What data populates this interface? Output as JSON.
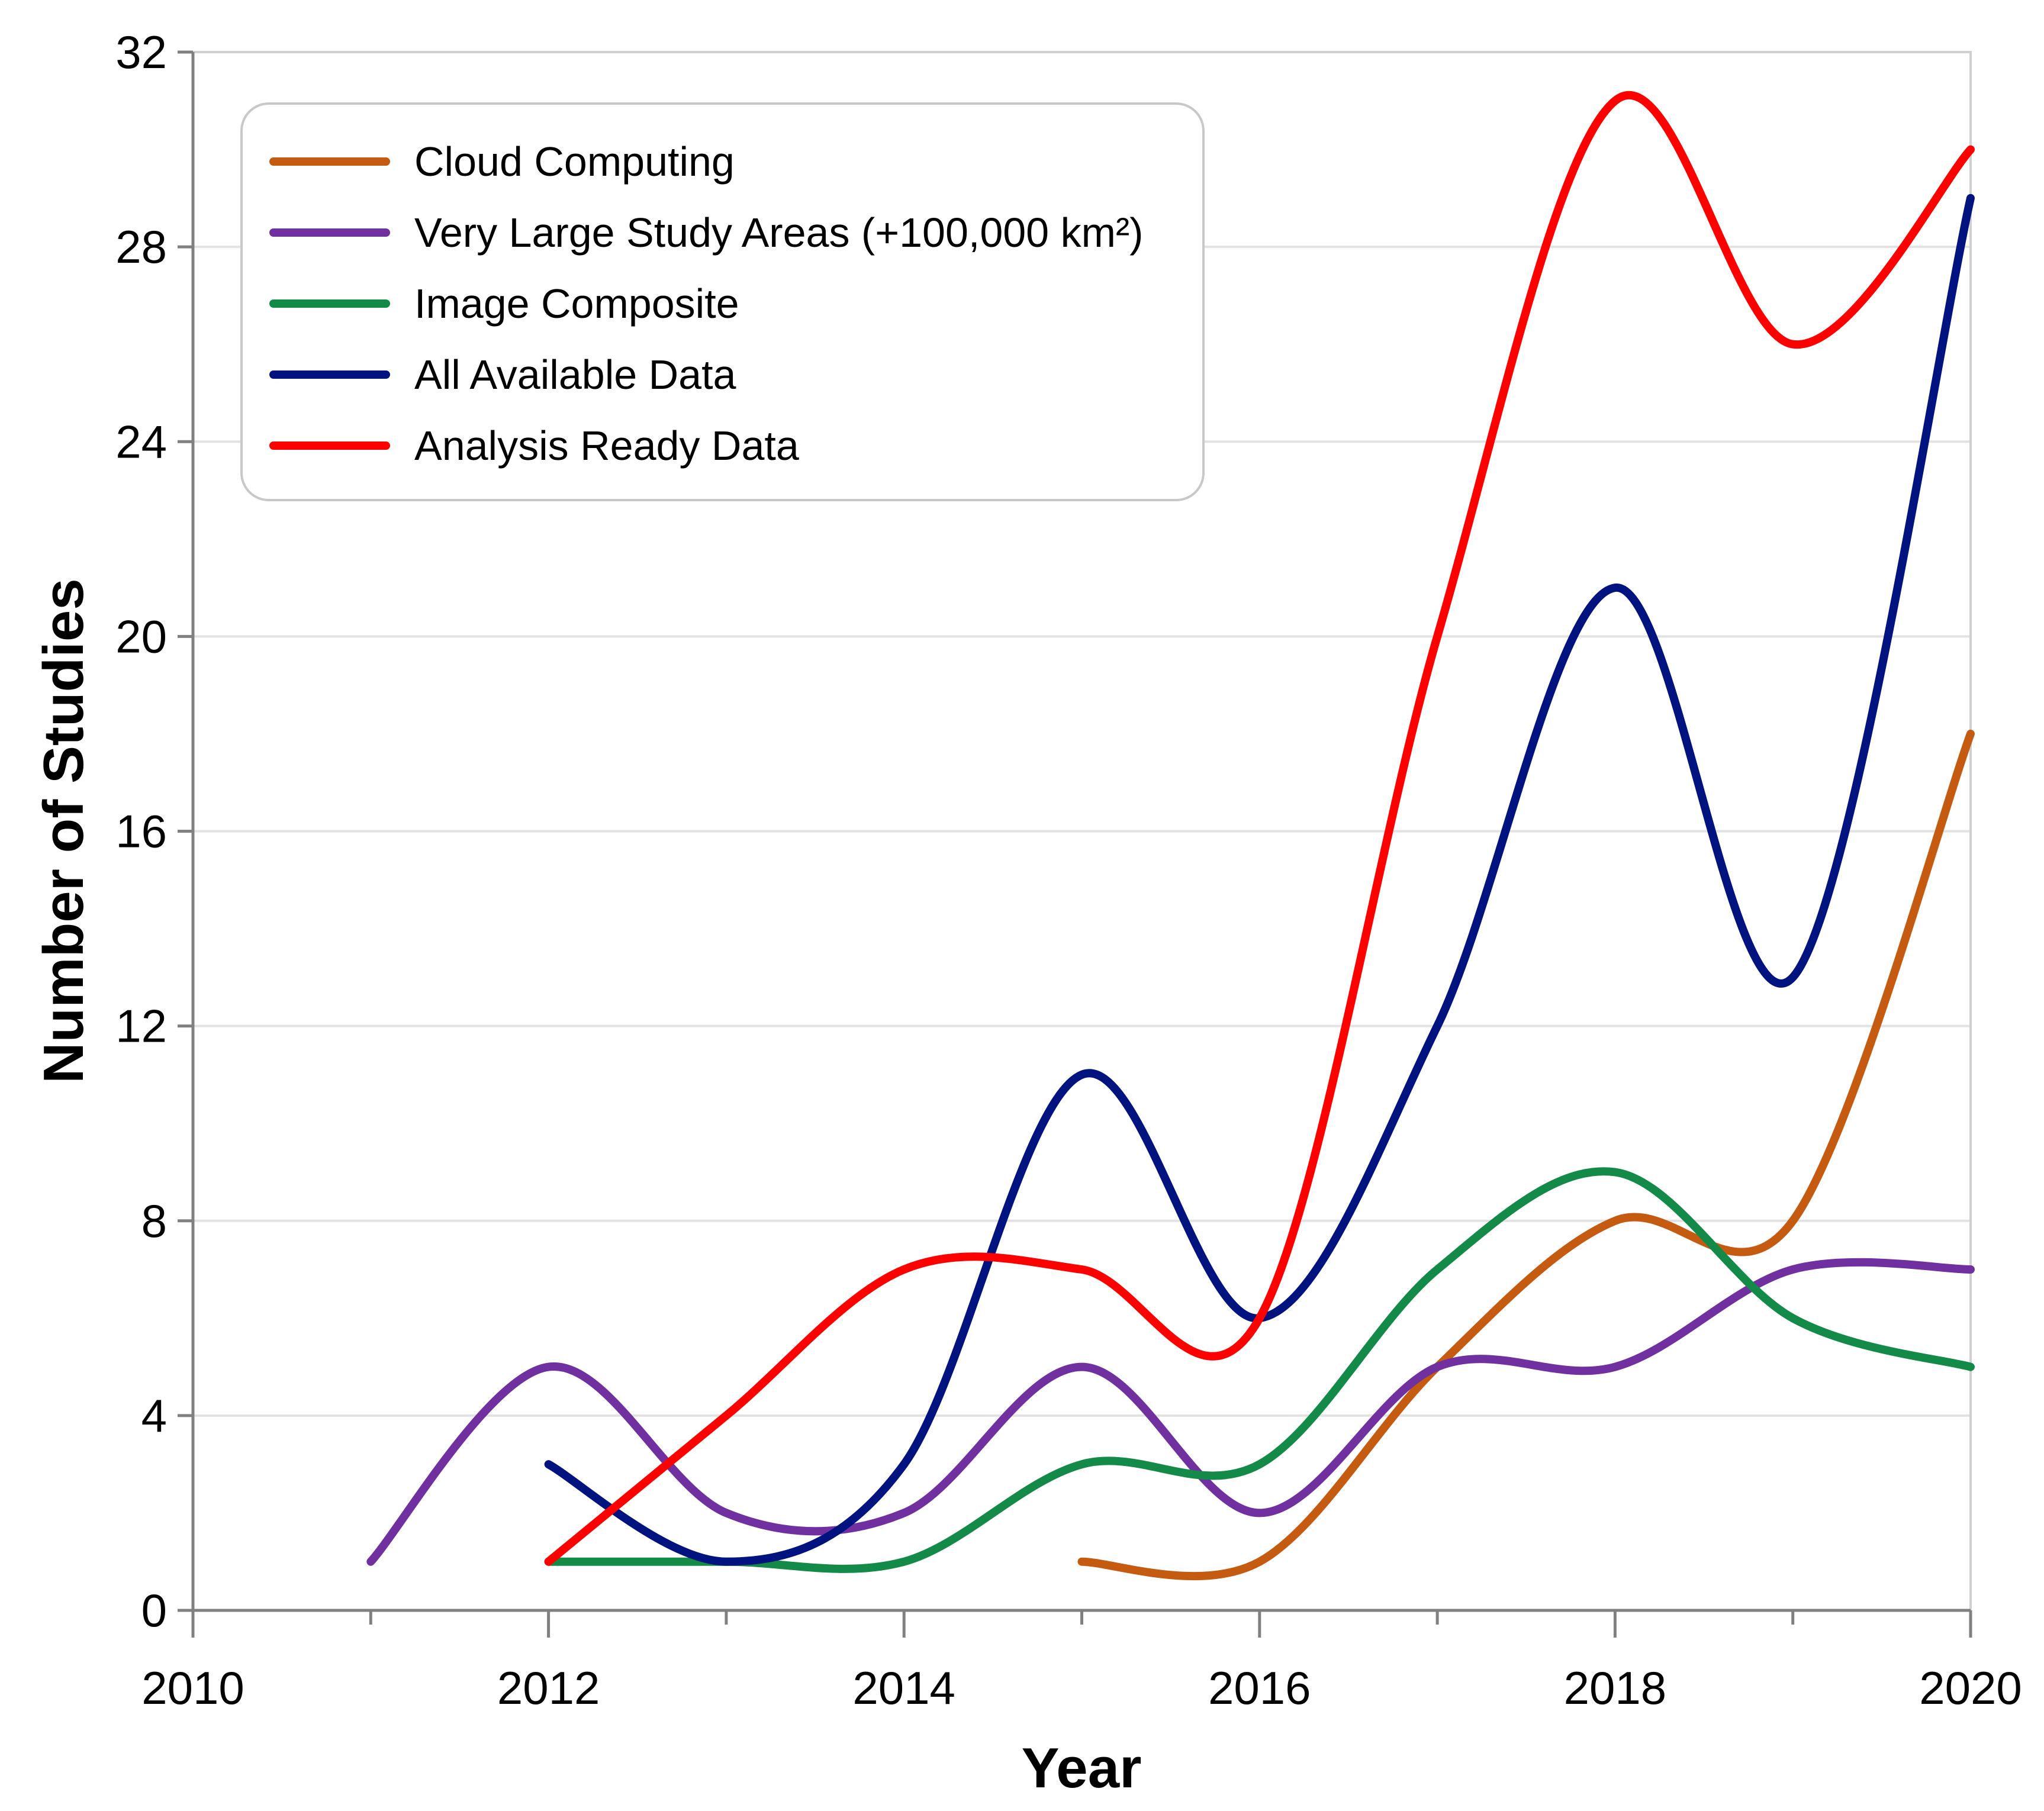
{
  "chart_data": {
    "type": "line",
    "title": "",
    "xlabel": "Year",
    "ylabel": "Number of Studies",
    "xlim": [
      2010,
      2020
    ],
    "ylim": [
      0,
      32
    ],
    "xticks": [
      2010,
      2012,
      2014,
      2016,
      2018,
      2020
    ],
    "xminor_ticks": [
      2011,
      2013,
      2015,
      2017,
      2019
    ],
    "yticks": [
      0,
      4,
      8,
      12,
      16,
      20,
      24,
      28,
      32
    ],
    "grid": true,
    "smooth": true,
    "legend_position": "top-left",
    "series": [
      {
        "name": "Cloud Computing",
        "color": "#c55a11",
        "x": [
          2015,
          2016,
          2017,
          2018,
          2019,
          2020
        ],
        "values": [
          1,
          1,
          5,
          8,
          8,
          18
        ]
      },
      {
        "name": "Very Large Study Areas (+100,000 km²)",
        "color": "#7030a0",
        "x": [
          2011,
          2012,
          2013,
          2014,
          2015,
          2016,
          2017,
          2018,
          2019,
          2020
        ],
        "values": [
          1,
          5,
          2,
          2,
          5,
          2,
          5,
          5,
          7,
          7
        ]
      },
      {
        "name": "Image Composite",
        "color": "#138a48",
        "x": [
          2012,
          2013,
          2014,
          2015,
          2016,
          2017,
          2018,
          2019,
          2020
        ],
        "values": [
          1,
          1,
          1,
          3,
          3,
          7,
          9,
          6,
          5
        ]
      },
      {
        "name": "All Available Data",
        "color": "#00137f",
        "x": [
          2012,
          2013,
          2014,
          2015,
          2016,
          2017,
          2018,
          2019,
          2020
        ],
        "values": [
          3,
          1,
          3,
          11,
          6,
          12,
          21,
          13,
          29
        ]
      },
      {
        "name": "Analysis Ready Data",
        "color": "#ff0000",
        "x": [
          2012,
          2013,
          2014,
          2015,
          2016,
          2017,
          2018,
          2019,
          2020
        ],
        "values": [
          1,
          4,
          7,
          7,
          6,
          20,
          31,
          26,
          30
        ]
      }
    ]
  }
}
